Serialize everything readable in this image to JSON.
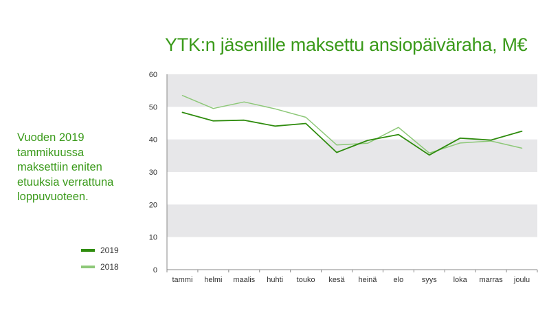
{
  "colors": {
    "title": "#3a9a1a",
    "series_2019": "#2f8c0e",
    "series_2018": "#8dc878",
    "band": "#e7e7e9"
  },
  "note": "Vuoden 2019 tammikuussa maksettiin eniten etuuksia verrattuna loppuvuoteen.",
  "chart_data": {
    "type": "line",
    "title": "YTK:n jäsenille maksettu ansiopäiväraha, M€",
    "xlabel": "",
    "ylabel": "",
    "ylim": [
      0,
      60
    ],
    "yticks": [
      0,
      10,
      20,
      30,
      40,
      50,
      60
    ],
    "grid": "alternating horizontal bands",
    "legend": "left",
    "categories": [
      "tammi",
      "helmi",
      "maalis",
      "huhti",
      "touko",
      "kesä",
      "heinä",
      "elo",
      "syys",
      "loka",
      "marras",
      "joulu"
    ],
    "series": [
      {
        "name": "2019",
        "values": [
          48.3,
          45.7,
          45.9,
          44.1,
          44.9,
          36.0,
          39.7,
          41.5,
          35.2,
          40.4,
          39.8,
          42.5
        ]
      },
      {
        "name": "2018",
        "values": [
          53.5,
          49.5,
          51.5,
          49.4,
          46.8,
          38.3,
          38.8,
          43.7,
          35.8,
          38.9,
          39.5,
          37.3
        ]
      }
    ]
  }
}
